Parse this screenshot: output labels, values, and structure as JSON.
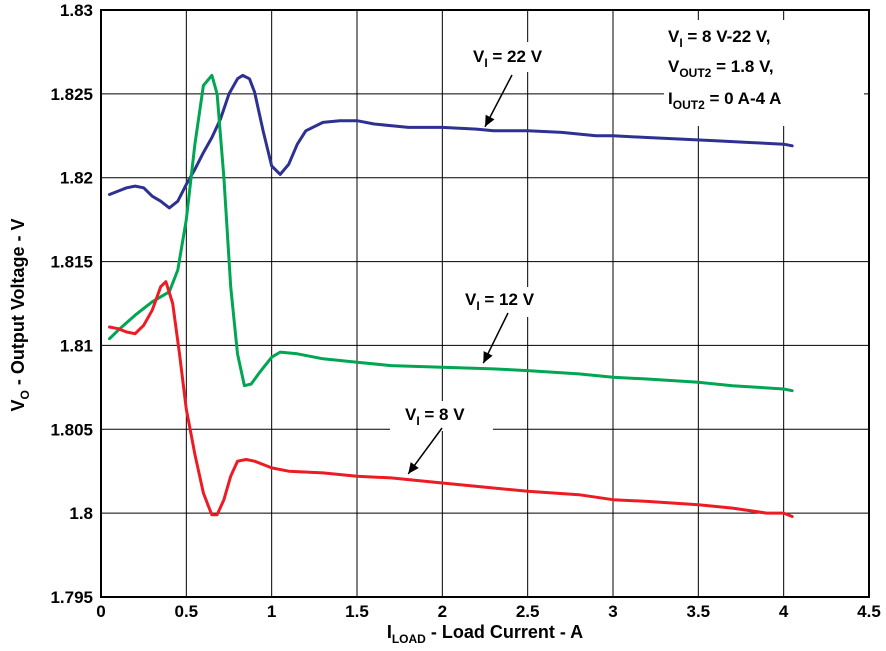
{
  "chart_data": {
    "type": "line",
    "xlabel": {
      "main": "I",
      "sub": "LOAD",
      "rest": " - Load Current - A"
    },
    "ylabel": {
      "main": "V",
      "sub": "O",
      "rest": " - Output Voltage - V"
    },
    "xlim": [
      0,
      4.5
    ],
    "ylim": [
      1.795,
      1.83
    ],
    "xticks": [
      0,
      0.5,
      1,
      1.5,
      2,
      2.5,
      3,
      3.5,
      4,
      4.5
    ],
    "xtick_labels": [
      "0",
      "0.5",
      "1",
      "1.5",
      "2",
      "2.5",
      "3",
      "3.5",
      "4",
      "4.5"
    ],
    "yticks": [
      1.795,
      1.8,
      1.805,
      1.81,
      1.815,
      1.82,
      1.825,
      1.83
    ],
    "ytick_labels": [
      "1.795",
      "1.8",
      "1.805",
      "1.81",
      "1.815",
      "1.82",
      "1.825",
      "1.83"
    ],
    "grid": true,
    "series": [
      {
        "color": "#2e3192",
        "x": [
          0.05,
          0.1,
          0.15,
          0.2,
          0.25,
          0.3,
          0.35,
          0.4,
          0.45,
          0.5,
          0.55,
          0.6,
          0.65,
          0.7,
          0.75,
          0.8,
          0.83,
          0.87,
          0.9,
          0.95,
          1.0,
          1.05,
          1.1,
          1.15,
          1.2,
          1.3,
          1.4,
          1.5,
          1.6,
          1.8,
          2.0,
          2.2,
          2.3,
          2.5,
          2.7,
          2.9,
          3.0,
          3.2,
          3.4,
          3.6,
          3.8,
          4.0,
          4.05
        ],
        "values": [
          1.819,
          1.8192,
          1.8194,
          1.8195,
          1.8194,
          1.8189,
          1.8186,
          1.8182,
          1.8186,
          1.8196,
          1.8205,
          1.8215,
          1.8224,
          1.8235,
          1.825,
          1.8259,
          1.8261,
          1.8259,
          1.8251,
          1.8228,
          1.8207,
          1.8202,
          1.8208,
          1.822,
          1.8228,
          1.8233,
          1.8234,
          1.8234,
          1.8232,
          1.823,
          1.823,
          1.8229,
          1.8228,
          1.8228,
          1.8227,
          1.8225,
          1.8225,
          1.8224,
          1.8223,
          1.8222,
          1.8221,
          1.822,
          1.8219
        ]
      },
      {
        "color": "#00a651",
        "x": [
          0.05,
          0.1,
          0.2,
          0.3,
          0.4,
          0.45,
          0.5,
          0.55,
          0.6,
          0.65,
          0.68,
          0.72,
          0.76,
          0.8,
          0.84,
          0.88,
          0.93,
          1.0,
          1.05,
          1.15,
          1.3,
          1.5,
          1.7,
          2.0,
          2.3,
          2.5,
          2.8,
          3.0,
          3.2,
          3.5,
          3.7,
          4.0,
          4.05
        ],
        "values": [
          1.8104,
          1.8109,
          1.8118,
          1.8126,
          1.8132,
          1.8145,
          1.8175,
          1.822,
          1.8255,
          1.8261,
          1.825,
          1.82,
          1.8135,
          1.8095,
          1.8076,
          1.8077,
          1.8084,
          1.8093,
          1.8096,
          1.8095,
          1.8092,
          1.809,
          1.8088,
          1.8087,
          1.8086,
          1.8085,
          1.8083,
          1.8081,
          1.808,
          1.8078,
          1.8076,
          1.8074,
          1.8073
        ]
      },
      {
        "color": "#ed1c24",
        "x": [
          0.05,
          0.1,
          0.15,
          0.2,
          0.25,
          0.3,
          0.35,
          0.38,
          0.42,
          0.46,
          0.5,
          0.55,
          0.6,
          0.63,
          0.65,
          0.68,
          0.72,
          0.76,
          0.8,
          0.85,
          0.9,
          0.95,
          1.0,
          1.1,
          1.3,
          1.5,
          1.7,
          2.0,
          2.3,
          2.5,
          2.8,
          3.0,
          3.2,
          3.5,
          3.7,
          3.9,
          4.0,
          4.05
        ],
        "values": [
          1.8111,
          1.811,
          1.8108,
          1.8107,
          1.8112,
          1.8121,
          1.8135,
          1.8138,
          1.8125,
          1.8095,
          1.8062,
          1.8035,
          1.8012,
          1.8004,
          1.7999,
          1.7999,
          1.8008,
          1.8022,
          1.8031,
          1.8032,
          1.8031,
          1.8029,
          1.8027,
          1.8025,
          1.8024,
          1.8022,
          1.8021,
          1.8018,
          1.8015,
          1.8013,
          1.8011,
          1.8008,
          1.8007,
          1.8005,
          1.8003,
          1.8,
          1.8,
          1.7998
        ]
      }
    ],
    "annotations": [
      {
        "main": "V",
        "sub": "I",
        "rest": " = 22 V"
      },
      {
        "main": "V",
        "sub": "I",
        "rest": " = 12 V"
      },
      {
        "main": "V",
        "sub": "I",
        "rest": " = 8 V"
      }
    ],
    "conditions": [
      {
        "main": "V",
        "sub": "I",
        "rest": " = 8 V-22 V,"
      },
      {
        "main": "V",
        "sub": "OUT2",
        "rest": " = 1.8 V,"
      },
      {
        "main": "I",
        "sub": "OUT2",
        "rest": " = 0 A-4 A"
      }
    ]
  }
}
